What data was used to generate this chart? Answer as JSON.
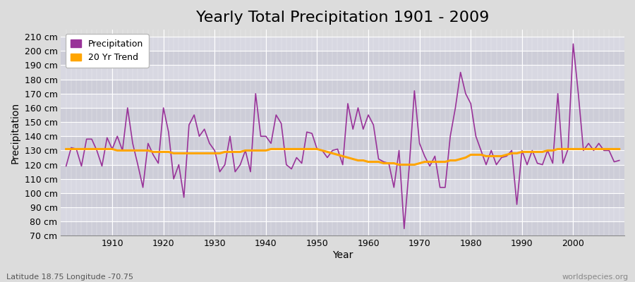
{
  "title": "Yearly Total Precipitation 1901 - 2009",
  "xlabel": "Year",
  "ylabel": "Precipitation",
  "subtitle": "Latitude 18.75 Longitude -70.75",
  "watermark": "worldspecies.org",
  "years": [
    1901,
    1902,
    1903,
    1904,
    1905,
    1906,
    1907,
    1908,
    1909,
    1910,
    1911,
    1912,
    1913,
    1914,
    1915,
    1916,
    1917,
    1918,
    1919,
    1920,
    1921,
    1922,
    1923,
    1924,
    1925,
    1926,
    1927,
    1928,
    1929,
    1930,
    1931,
    1932,
    1933,
    1934,
    1935,
    1936,
    1937,
    1938,
    1939,
    1940,
    1941,
    1942,
    1943,
    1944,
    1945,
    1946,
    1947,
    1948,
    1949,
    1950,
    1951,
    1952,
    1953,
    1954,
    1955,
    1956,
    1957,
    1958,
    1959,
    1960,
    1961,
    1962,
    1963,
    1964,
    1965,
    1966,
    1967,
    1968,
    1969,
    1970,
    1971,
    1972,
    1973,
    1974,
    1975,
    1976,
    1977,
    1978,
    1979,
    1980,
    1981,
    1982,
    1983,
    1984,
    1985,
    1986,
    1987,
    1988,
    1989,
    1990,
    1991,
    1992,
    1993,
    1994,
    1995,
    1996,
    1997,
    1998,
    1999,
    2000,
    2001,
    2002,
    2003,
    2004,
    2005,
    2006,
    2007,
    2008,
    2009
  ],
  "precipitation": [
    119,
    132,
    131,
    119,
    138,
    138,
    130,
    119,
    139,
    131,
    140,
    130,
    160,
    135,
    120,
    104,
    135,
    127,
    121,
    160,
    143,
    110,
    120,
    97,
    148,
    155,
    140,
    145,
    135,
    130,
    115,
    120,
    140,
    115,
    120,
    130,
    115,
    170,
    140,
    140,
    135,
    155,
    149,
    120,
    117,
    125,
    121,
    143,
    142,
    131,
    130,
    125,
    130,
    131,
    120,
    163,
    145,
    160,
    145,
    155,
    148,
    124,
    122,
    121,
    104,
    130,
    75,
    119,
    172,
    135,
    126,
    119,
    126,
    104,
    104,
    140,
    160,
    185,
    170,
    163,
    140,
    130,
    120,
    130,
    120,
    125,
    126,
    130,
    92,
    130,
    120,
    130,
    121,
    120,
    130,
    121,
    170,
    121,
    131,
    205,
    170,
    130,
    135,
    130,
    135,
    130,
    130,
    122,
    123
  ],
  "trend": [
    131,
    131,
    131,
    131,
    131,
    131,
    131,
    131,
    131,
    131,
    130,
    130,
    130,
    130,
    130,
    130,
    130,
    129,
    129,
    129,
    129,
    128,
    128,
    128,
    128,
    128,
    128,
    128,
    128,
    128,
    128,
    129,
    129,
    129,
    129,
    130,
    130,
    130,
    130,
    130,
    131,
    131,
    131,
    131,
    131,
    131,
    131,
    131,
    131,
    131,
    130,
    129,
    128,
    127,
    126,
    125,
    124,
    123,
    123,
    122,
    122,
    122,
    121,
    121,
    121,
    120,
    120,
    120,
    120,
    121,
    122,
    122,
    122,
    122,
    122,
    123,
    123,
    124,
    125,
    127,
    127,
    127,
    126,
    126,
    126,
    126,
    127,
    128,
    128,
    129,
    129,
    129,
    129,
    129,
    130,
    130,
    131,
    131,
    131,
    131,
    131,
    131,
    131,
    131,
    131,
    131,
    131,
    131,
    131
  ],
  "precip_color": "#993399",
  "trend_color": "#FFA500",
  "bg_color": "#DCDCDC",
  "plot_bg_color_odd": "#D0D0D8",
  "plot_bg_color_even": "#E0E0E8",
  "grid_color": "#FFFFFF",
  "ylim": [
    70,
    215
  ],
  "yticks": [
    70,
    80,
    90,
    100,
    110,
    120,
    130,
    140,
    150,
    160,
    170,
    180,
    190,
    200,
    210
  ],
  "xticks": [
    1910,
    1920,
    1930,
    1940,
    1950,
    1960,
    1970,
    1980,
    1990,
    2000
  ],
  "title_fontsize": 16,
  "axis_label_fontsize": 10,
  "tick_fontsize": 9,
  "legend_fontsize": 9
}
